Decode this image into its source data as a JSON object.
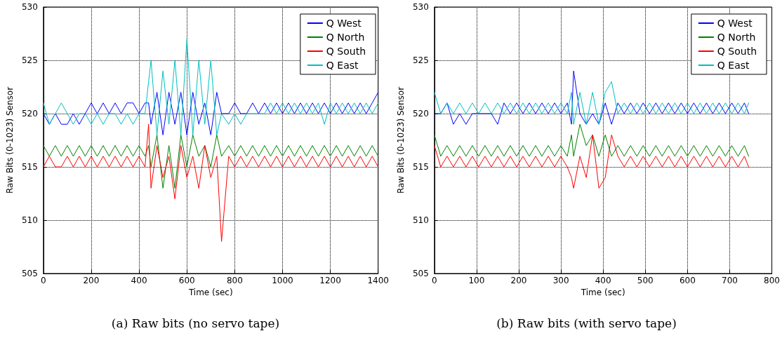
{
  "chart_data": [
    {
      "type": "line",
      "title": "(a) Raw bits (no servo tape)",
      "xlabel": "Time (sec)",
      "ylabel": "Raw Bits (0-1023) Sensor",
      "xlim": [
        0,
        1400
      ],
      "xticks": [
        0,
        200,
        400,
        600,
        800,
        1000,
        1200,
        1400
      ],
      "ylim": [
        505,
        530
      ],
      "yticks": [
        505,
        510,
        515,
        520,
        525,
        530
      ],
      "grid": true,
      "legend": "top right",
      "marker": "none",
      "line_style": "solid",
      "x": [
        0,
        25,
        50,
        75,
        100,
        125,
        150,
        175,
        200,
        225,
        250,
        275,
        300,
        325,
        350,
        375,
        400,
        425,
        440,
        450,
        475,
        500,
        525,
        550,
        575,
        600,
        625,
        650,
        675,
        700,
        725,
        745,
        775,
        800,
        825,
        850,
        875,
        900,
        925,
        950,
        975,
        1000,
        1025,
        1050,
        1075,
        1100,
        1125,
        1150,
        1175,
        1200,
        1225,
        1250,
        1275,
        1300,
        1325,
        1350,
        1375,
        1400
      ],
      "series": [
        {
          "name": "Q West",
          "color": "#0000ff",
          "values": [
            520,
            519,
            520,
            519,
            519,
            520,
            519,
            520,
            521,
            520,
            521,
            520,
            521,
            520,
            521,
            521,
            520,
            521,
            521,
            519,
            522,
            518,
            522,
            519,
            522,
            518,
            522,
            519,
            521,
            518,
            522,
            520,
            520,
            521,
            520,
            520,
            521,
            520,
            521,
            520,
            521,
            520,
            521,
            520,
            521,
            520,
            521,
            520,
            521,
            520,
            521,
            520,
            521,
            520,
            521,
            520,
            521,
            522
          ]
        },
        {
          "name": "Q North",
          "color": "#008000",
          "values": [
            517,
            516,
            517,
            516,
            517,
            516,
            517,
            516,
            517,
            516,
            517,
            516,
            517,
            516,
            517,
            516,
            517,
            516,
            517,
            515,
            518,
            513,
            517,
            513,
            518,
            515,
            518,
            516,
            517,
            515,
            518,
            516,
            517,
            516,
            517,
            516,
            517,
            516,
            517,
            516,
            517,
            516,
            517,
            516,
            517,
            516,
            517,
            516,
            517,
            516,
            517,
            516,
            517,
            516,
            517,
            516,
            517,
            516
          ]
        },
        {
          "name": "Q South",
          "color": "#ff0000",
          "values": [
            515,
            516,
            515,
            515,
            516,
            515,
            516,
            515,
            516,
            515,
            516,
            515,
            516,
            515,
            516,
            515,
            516,
            515,
            519,
            513,
            517,
            514,
            516,
            512,
            517,
            514,
            516,
            513,
            517,
            514,
            516,
            508,
            516,
            515,
            516,
            515,
            516,
            515,
            516,
            515,
            516,
            515,
            516,
            515,
            516,
            515,
            516,
            515,
            516,
            515,
            516,
            515,
            516,
            515,
            516,
            515,
            516,
            515
          ]
        },
        {
          "name": "Q East",
          "color": "#00bfbf",
          "values": [
            521,
            519,
            520,
            521,
            520,
            519,
            520,
            520,
            519,
            520,
            519,
            520,
            520,
            519,
            520,
            519,
            520,
            520,
            523,
            525,
            518,
            524,
            519,
            525,
            518,
            527,
            518,
            525,
            519,
            525,
            518,
            520,
            519,
            520,
            519,
            520,
            520,
            520,
            520,
            521,
            520,
            521,
            520,
            521,
            520,
            521,
            520,
            521,
            519,
            521,
            520,
            521,
            520,
            521,
            520,
            521,
            520,
            521
          ]
        }
      ]
    },
    {
      "type": "line",
      "title": "(b) Raw bits (with servo tape)",
      "xlabel": "Time (sec)",
      "ylabel": "Raw Bits (0-1023) Sensor",
      "xlim": [
        0,
        800
      ],
      "xticks": [
        0,
        100,
        200,
        300,
        400,
        500,
        600,
        700,
        800
      ],
      "ylim": [
        505,
        530
      ],
      "yticks": [
        505,
        510,
        515,
        520,
        525,
        530
      ],
      "grid": true,
      "legend": "top right",
      "marker": "none",
      "line_style": "solid",
      "x": [
        0,
        15,
        30,
        45,
        60,
        75,
        90,
        105,
        120,
        135,
        150,
        165,
        180,
        195,
        210,
        225,
        240,
        255,
        270,
        285,
        300,
        315,
        325,
        330,
        345,
        360,
        375,
        390,
        405,
        420,
        435,
        450,
        465,
        480,
        495,
        510,
        525,
        540,
        555,
        570,
        585,
        600,
        615,
        630,
        645,
        660,
        675,
        690,
        705,
        720,
        735,
        745
      ],
      "series": [
        {
          "name": "Q West",
          "color": "#0000ff",
          "values": [
            520,
            520,
            521,
            519,
            520,
            519,
            520,
            520,
            520,
            520,
            519,
            521,
            520,
            521,
            520,
            521,
            520,
            521,
            520,
            521,
            520,
            521,
            519,
            524,
            520,
            519,
            520,
            519,
            521,
            519,
            521,
            520,
            521,
            520,
            521,
            520,
            521,
            520,
            521,
            520,
            521,
            520,
            521,
            520,
            521,
            520,
            521,
            520,
            521,
            520,
            521,
            520
          ]
        },
        {
          "name": "Q North",
          "color": "#008000",
          "values": [
            518,
            516,
            517,
            516,
            517,
            516,
            517,
            516,
            517,
            516,
            517,
            516,
            517,
            516,
            517,
            516,
            517,
            516,
            517,
            516,
            517,
            516,
            518,
            516,
            519,
            517,
            518,
            516,
            518,
            516,
            517,
            516,
            517,
            516,
            517,
            516,
            517,
            516,
            517,
            516,
            517,
            516,
            517,
            516,
            517,
            516,
            517,
            516,
            517,
            516,
            517,
            516
          ]
        },
        {
          "name": "Q South",
          "color": "#ff0000",
          "values": [
            517,
            515,
            516,
            515,
            516,
            515,
            516,
            515,
            516,
            515,
            516,
            515,
            516,
            515,
            516,
            515,
            516,
            515,
            516,
            515,
            516,
            515,
            514,
            513,
            516,
            514,
            518,
            513,
            514,
            518,
            516,
            515,
            516,
            515,
            516,
            515,
            516,
            515,
            516,
            515,
            516,
            515,
            516,
            515,
            516,
            515,
            516,
            515,
            516,
            515,
            516,
            515
          ]
        },
        {
          "name": "Q East",
          "color": "#00bfbf",
          "values": [
            522,
            520,
            521,
            520,
            521,
            520,
            521,
            520,
            521,
            520,
            521,
            520,
            521,
            520,
            521,
            520,
            521,
            520,
            521,
            520,
            521,
            520,
            522,
            519,
            522,
            519,
            522,
            519,
            522,
            523,
            520,
            521,
            520,
            521,
            520,
            521,
            520,
            521,
            520,
            521,
            520,
            521,
            520,
            521,
            520,
            521,
            520,
            521,
            520,
            521,
            520,
            521
          ]
        }
      ]
    }
  ]
}
